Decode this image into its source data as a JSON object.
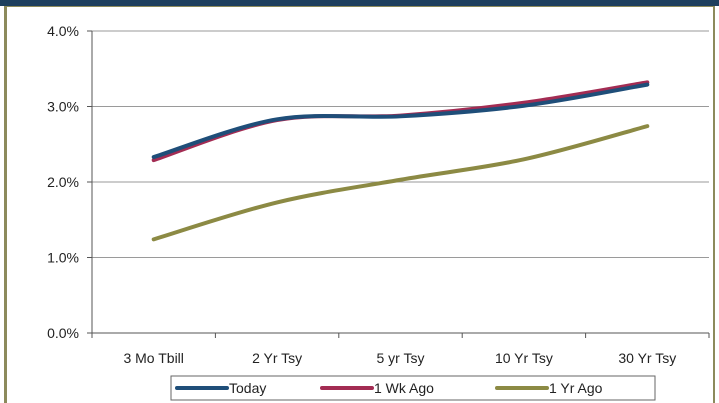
{
  "chart_data": {
    "type": "line",
    "categories": [
      "3 Mo Tbill",
      "2 Yr Tsy",
      "5 yr Tsy",
      "10 Yr Tsy",
      "30 Yr Tsy"
    ],
    "series": [
      {
        "name": "Today",
        "color": "#1f4e79",
        "values": [
          2.33,
          2.83,
          2.87,
          3.01,
          3.29
        ]
      },
      {
        "name": "1 Wk Ago",
        "color": "#a32c53",
        "values": [
          2.29,
          2.82,
          2.88,
          3.05,
          3.32
        ]
      },
      {
        "name": "1 Yr Ago",
        "color": "#8c8a44",
        "values": [
          1.24,
          1.73,
          2.03,
          2.3,
          2.74
        ]
      }
    ],
    "y_ticks": [
      "0.0%",
      "1.0%",
      "2.0%",
      "3.0%",
      "4.0%"
    ],
    "ylim": [
      0,
      4
    ],
    "grid": true,
    "legend_position": "bottom",
    "title": "",
    "xlabel": "",
    "ylabel": ""
  },
  "colors": {
    "top_band": "#1d3f5e",
    "frame": "#8c8a5c",
    "grid": "#9a9a9a"
  }
}
